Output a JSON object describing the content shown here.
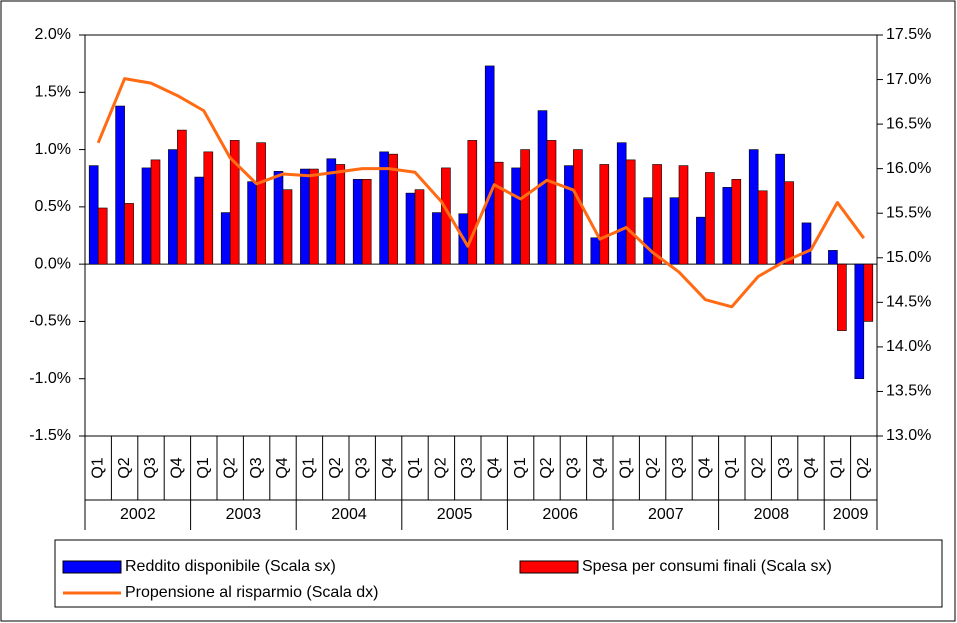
{
  "chart_data": {
    "type": "bar-line",
    "categories": [
      "Q1",
      "Q2",
      "Q3",
      "Q4",
      "Q1",
      "Q2",
      "Q3",
      "Q4",
      "Q1",
      "Q2",
      "Q3",
      "Q4",
      "Q1",
      "Q2",
      "Q3",
      "Q4",
      "Q1",
      "Q2",
      "Q3",
      "Q4",
      "Q1",
      "Q2",
      "Q3",
      "Q4",
      "Q1",
      "Q2",
      "Q3",
      "Q4",
      "Q1",
      "Q2"
    ],
    "category_groups": [
      "2002",
      null,
      null,
      null,
      "2003",
      null,
      null,
      null,
      "2004",
      null,
      null,
      null,
      "2005",
      null,
      null,
      null,
      "2006",
      null,
      null,
      null,
      "2007",
      null,
      null,
      null,
      "2008",
      null,
      null,
      null,
      "2009",
      null
    ],
    "series": [
      {
        "name": "Reddito disponibile (Scala sx)",
        "kind": "bar",
        "color": "#0000ff",
        "values": [
          0.86,
          1.38,
          0.84,
          1.0,
          0.76,
          0.45,
          0.72,
          0.81,
          0.83,
          0.92,
          0.74,
          0.98,
          0.62,
          0.45,
          0.44,
          1.73,
          0.84,
          1.34,
          0.86,
          0.23,
          1.06,
          0.58,
          0.58,
          0.41,
          0.67,
          1.0,
          0.96,
          0.36,
          0.12,
          -1.0
        ]
      },
      {
        "name": "Spesa per consumi finali (Scala sx)",
        "kind": "bar",
        "color": "#ff0000",
        "values": [
          0.49,
          0.53,
          0.91,
          1.17,
          0.98,
          1.08,
          1.06,
          0.65,
          0.83,
          0.87,
          0.74,
          0.96,
          0.65,
          0.84,
          1.08,
          0.89,
          1.0,
          1.08,
          1.0,
          0.87,
          0.91,
          0.87,
          0.86,
          0.8,
          0.74,
          0.64,
          0.72,
          0.0,
          -0.58,
          -0.5
        ]
      },
      {
        "name": "Propensione al risparmio (Scala dx)",
        "kind": "line",
        "axis": "y2",
        "color": "#ff6a13",
        "values": [
          16.29,
          17.01,
          16.96,
          16.82,
          16.65,
          16.12,
          15.83,
          15.94,
          15.92,
          15.96,
          16.0,
          16.0,
          15.96,
          15.63,
          15.13,
          15.82,
          15.66,
          15.87,
          15.76,
          15.21,
          15.34,
          15.06,
          14.84,
          14.53,
          14.45,
          14.79,
          14.96,
          15.09,
          15.62,
          15.22
        ]
      }
    ],
    "ylim": [
      -1.5,
      2.0
    ],
    "yticks": [
      {
        "value": -1.5,
        "label": "-1.5%"
      },
      {
        "value": -1.0,
        "label": "-1.0%"
      },
      {
        "value": -0.5,
        "label": "-0.5%"
      },
      {
        "value": 0.0,
        "label": "0.0%"
      },
      {
        "value": 0.5,
        "label": "0.5%"
      },
      {
        "value": 1.0,
        "label": "1.0%"
      },
      {
        "value": 1.5,
        "label": "1.5%"
      },
      {
        "value": 2.0,
        "label": "2.0%"
      }
    ],
    "y2lim": [
      13.0,
      17.5
    ],
    "y2ticks": [
      {
        "value": 13.0,
        "label": "13.0%"
      },
      {
        "value": 13.5,
        "label": "13.5%"
      },
      {
        "value": 14.0,
        "label": "14.0%"
      },
      {
        "value": 14.5,
        "label": "14.5%"
      },
      {
        "value": 15.0,
        "label": "15.0%"
      },
      {
        "value": 15.5,
        "label": "15.5%"
      },
      {
        "value": 16.0,
        "label": "16.0%"
      },
      {
        "value": 16.5,
        "label": "16.5%"
      },
      {
        "value": 17.0,
        "label": "17.0%"
      },
      {
        "value": 17.5,
        "label": "17.5%"
      }
    ],
    "legend": "bottom"
  }
}
